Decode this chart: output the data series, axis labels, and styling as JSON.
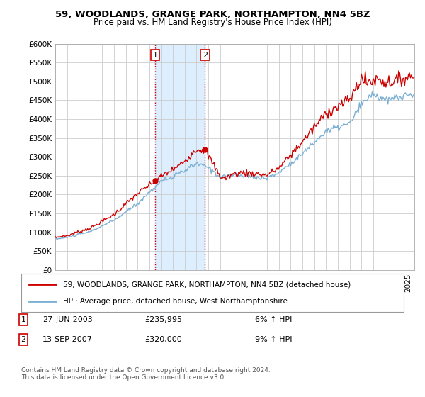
{
  "title": "59, WOODLANDS, GRANGE PARK, NORTHAMPTON, NN4 5BZ",
  "subtitle": "Price paid vs. HM Land Registry's House Price Index (HPI)",
  "legend_line1": "59, WOODLANDS, GRANGE PARK, NORTHAMPTON, NN4 5BZ (detached house)",
  "legend_line2": "HPI: Average price, detached house, West Northamptonshire",
  "annotation1_date": "27-JUN-2003",
  "annotation1_price": "£235,995",
  "annotation1_hpi": "6% ↑ HPI",
  "annotation2_date": "13-SEP-2007",
  "annotation2_price": "£320,000",
  "annotation2_hpi": "9% ↑ HPI",
  "footnote": "Contains HM Land Registry data © Crown copyright and database right 2024.\nThis data is licensed under the Open Government Licence v3.0.",
  "ylim": [
    0,
    600000
  ],
  "yticks": [
    0,
    50000,
    100000,
    150000,
    200000,
    250000,
    300000,
    350000,
    400000,
    450000,
    500000,
    550000,
    600000
  ],
  "hpi_color": "#7bafd4",
  "price_color": "#cc0000",
  "shade_color": "#ddeeff",
  "background_color": "#ffffff",
  "marker1_x": 2003.49,
  "marker1_y": 235995,
  "marker2_x": 2007.71,
  "marker2_y": 320000,
  "xmin": 1995,
  "xmax": 2025.5
}
